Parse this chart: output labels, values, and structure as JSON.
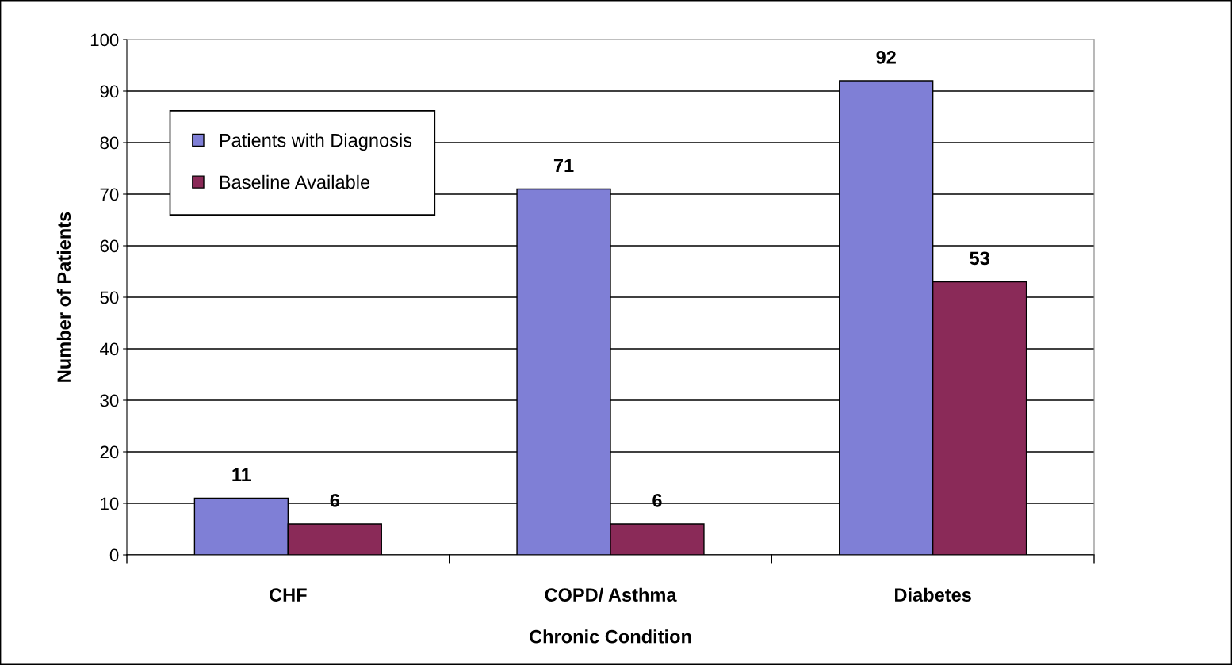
{
  "chart_data": {
    "type": "bar",
    "xlabel": "Chronic Condition",
    "ylabel": "Number of Patients",
    "categories": [
      "CHF",
      "COPD/ Asthma",
      "Diabetes"
    ],
    "series": [
      {
        "name": "Patients with Diagnosis",
        "color": "#7f7fd6",
        "values": [
          11,
          71,
          92
        ]
      },
      {
        "name": "Baseline Available",
        "color": "#8a2a58",
        "values": [
          6,
          6,
          53
        ]
      }
    ],
    "ylim": [
      0,
      100
    ],
    "yticks": [
      0,
      10,
      20,
      30,
      40,
      50,
      60,
      70,
      80,
      90,
      100
    ],
    "grid": "y",
    "legend": "top left",
    "data_labels": true
  }
}
